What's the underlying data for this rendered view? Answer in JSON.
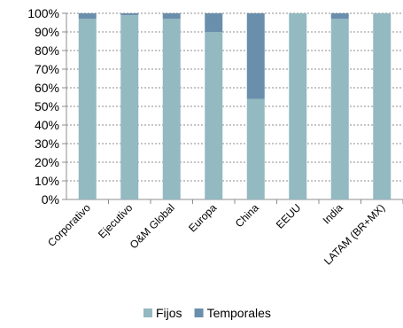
{
  "chart_data": {
    "type": "bar",
    "stacked": true,
    "categories": [
      "Corporativo",
      "Ejecutivo",
      "O&M Global",
      "Europa",
      "China",
      "EEUU",
      "India",
      "LATAM (BR+MX)"
    ],
    "series": [
      {
        "name": "Fijos",
        "values": [
          97,
          99,
          97,
          90,
          54,
          100,
          97,
          100
        ],
        "color": "#93b9c1"
      },
      {
        "name": "Temporales",
        "values": [
          3,
          1,
          3,
          10,
          46,
          0,
          3,
          0
        ],
        "color": "#6a8fac"
      }
    ],
    "ylim": [
      0,
      100
    ],
    "yticks": [
      "0%",
      "10%",
      "20%",
      "30%",
      "40%",
      "50%",
      "60%",
      "70%",
      "80%",
      "90%",
      "100%"
    ],
    "grid": "horizontal-dashed",
    "legend": "bottom"
  }
}
